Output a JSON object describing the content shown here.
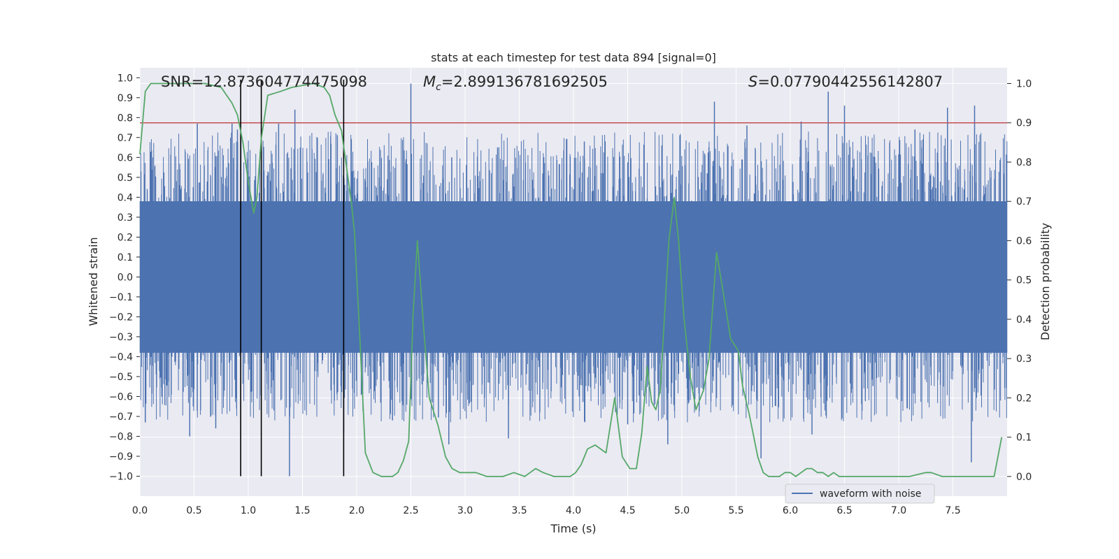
{
  "chart_data": {
    "type": "line",
    "title": "stats at each timestep for test data 894 [signal=0]",
    "xlabel": "Time (s)",
    "ylabel": "Whitened strain",
    "y2label": "Detection probability",
    "xlim": [
      0.0,
      8.0
    ],
    "ylim": [
      -1.1,
      1.05
    ],
    "y2lim": [
      -0.05,
      1.04
    ],
    "xticks": [
      0.0,
      0.5,
      1.0,
      1.5,
      2.0,
      2.5,
      3.0,
      3.5,
      4.0,
      4.5,
      5.0,
      5.5,
      6.0,
      6.5,
      7.0,
      7.5
    ],
    "xtick_labels": [
      "0.0",
      "0.5",
      "1.0",
      "1.5",
      "2.0",
      "2.5",
      "3.0",
      "3.5",
      "4.0",
      "4.5",
      "5.0",
      "5.5",
      "6.0",
      "6.5",
      "7.0",
      "7.5"
    ],
    "yticks": [
      1.0,
      0.9,
      0.8,
      0.7,
      0.6,
      0.5,
      0.4,
      0.3,
      0.2,
      0.1,
      0.0,
      -0.1,
      -0.2,
      -0.3,
      -0.4,
      -0.5,
      -0.6,
      -0.7,
      -0.8,
      -0.9,
      -1.0
    ],
    "ytick_labels": [
      "1.0",
      "0.9",
      "0.8",
      "0.7",
      "0.6",
      "0.5",
      "0.4",
      "0.3",
      "0.2",
      "0.1",
      "0.0",
      "−0.1",
      "−0.2",
      "−0.3",
      "−0.4",
      "−0.5",
      "−0.6",
      "−0.7",
      "−0.8",
      "−0.9",
      "−1.0"
    ],
    "y2ticks": [
      1.0,
      0.9,
      0.8,
      0.7,
      0.6,
      0.5,
      0.4,
      0.3,
      0.2,
      0.1,
      0.0
    ],
    "y2tick_labels": [
      "1.0",
      "0.9",
      "0.8",
      "0.7",
      "0.6",
      "0.5",
      "0.4",
      "0.3",
      "0.2",
      "0.1",
      "0.0"
    ],
    "grid": true,
    "legend_position": "lower-right",
    "legend": [
      "waveform with noise"
    ],
    "annotations": {
      "snr": "SNR=12.873604774475098",
      "mc_symbol": "M",
      "mc_subscript": "c",
      "mc_value": "=2.899136781692505",
      "s_symbol": "S",
      "s_value": "=0.07790442556142807"
    },
    "threshold": {
      "axis": "right",
      "value": 0.9
    },
    "vlines": [
      0.93,
      1.12,
      1.88
    ],
    "waveform": {
      "name": "waveform with noise",
      "axis": "left",
      "bulk_amplitude": 0.38,
      "seed": 894,
      "positive_spikes": [
        [
          0.53,
          0.77
        ],
        [
          0.85,
          0.77
        ],
        [
          0.9,
          0.74
        ],
        [
          1.28,
          0.77
        ],
        [
          1.43,
          0.84
        ],
        [
          2.5,
          0.97
        ],
        [
          5.3,
          0.88
        ],
        [
          5.6,
          0.76
        ],
        [
          6.1,
          0.78
        ],
        [
          6.35,
          0.93
        ],
        [
          6.5,
          0.86
        ],
        [
          7.15,
          0.74
        ],
        [
          7.45,
          0.85
        ],
        [
          7.7,
          0.86
        ],
        [
          4.1,
          0.68
        ],
        [
          3.3,
          0.65
        ]
      ],
      "negative_spikes": [
        [
          0.46,
          -0.8
        ],
        [
          0.7,
          -0.76
        ],
        [
          1.38,
          -1.0
        ],
        [
          1.88,
          -0.78
        ],
        [
          2.85,
          -0.84
        ],
        [
          3.4,
          -0.81
        ],
        [
          4.87,
          -0.84
        ],
        [
          5.73,
          -0.91
        ],
        [
          6.2,
          -0.79
        ],
        [
          7.67,
          -0.93
        ],
        [
          0.05,
          -0.73
        ],
        [
          2.33,
          -0.72
        ],
        [
          4.5,
          -0.74
        ]
      ]
    },
    "detection_probability": {
      "name": "",
      "axis": "right",
      "x": [
        0.0,
        0.05,
        0.1,
        0.2,
        0.3,
        0.5,
        0.6,
        0.75,
        0.8,
        0.85,
        0.9,
        0.95,
        1.0,
        1.05,
        1.08,
        1.12,
        1.18,
        1.3,
        1.4,
        1.6,
        1.7,
        1.75,
        1.8,
        1.86,
        1.9,
        1.95,
        1.98,
        2.03,
        2.08,
        2.15,
        2.23,
        2.33,
        2.38,
        2.43,
        2.48,
        2.52,
        2.56,
        2.62,
        2.67,
        2.75,
        2.82,
        2.88,
        2.95,
        3.03,
        3.1,
        3.2,
        3.35,
        3.45,
        3.55,
        3.6,
        3.65,
        3.72,
        3.82,
        3.92,
        3.97,
        4.02,
        4.07,
        4.13,
        4.2,
        4.3,
        4.38,
        4.45,
        4.52,
        4.58,
        4.63,
        4.68,
        4.72,
        4.76,
        4.8,
        4.88,
        4.93,
        4.97,
        5.02,
        5.08,
        5.13,
        5.2,
        5.25,
        5.32,
        5.38,
        5.45,
        5.52,
        5.56,
        5.62,
        5.7,
        5.75,
        5.8,
        5.85,
        5.9,
        5.95,
        6.0,
        6.05,
        6.1,
        6.15,
        6.2,
        6.25,
        6.3,
        6.35,
        6.4,
        6.45,
        6.55,
        6.7,
        6.8,
        7.0,
        7.1,
        7.25,
        7.3,
        7.4,
        7.5,
        7.6,
        7.7,
        7.8,
        7.85,
        7.88,
        7.95
      ],
      "y": [
        0.82,
        0.98,
        1.0,
        1.0,
        1.0,
        1.0,
        1.0,
        0.99,
        0.97,
        0.95,
        0.92,
        0.85,
        0.75,
        0.67,
        0.71,
        0.86,
        0.97,
        0.98,
        0.99,
        1.0,
        0.99,
        0.97,
        0.92,
        0.88,
        0.8,
        0.7,
        0.62,
        0.35,
        0.06,
        0.01,
        0.0,
        0.0,
        0.01,
        0.04,
        0.09,
        0.41,
        0.6,
        0.37,
        0.2,
        0.13,
        0.05,
        0.02,
        0.01,
        0.01,
        0.01,
        0.0,
        0.0,
        0.01,
        0.0,
        0.01,
        0.02,
        0.01,
        0.0,
        0.0,
        0.0,
        0.01,
        0.03,
        0.07,
        0.08,
        0.06,
        0.2,
        0.05,
        0.02,
        0.02,
        0.11,
        0.28,
        0.19,
        0.17,
        0.22,
        0.6,
        0.71,
        0.6,
        0.4,
        0.25,
        0.17,
        0.22,
        0.3,
        0.57,
        0.47,
        0.35,
        0.32,
        0.23,
        0.16,
        0.05,
        0.01,
        0.0,
        0.0,
        0.0,
        0.01,
        0.01,
        0.0,
        0.01,
        0.02,
        0.02,
        0.01,
        0.01,
        0.0,
        0.01,
        0.0,
        0.0,
        0.0,
        0.0,
        0.0,
        0.0,
        0.01,
        0.01,
        0.0,
        0.0,
        0.0,
        0.0,
        0.0,
        0.0,
        0.0,
        0.1
      ]
    },
    "colors": {
      "figure_bg": "#ffffff",
      "axes_bg": "#eaeaf2",
      "grid": "#ffffff",
      "waveform": "#4c72b0",
      "probability": "#55a868",
      "threshold": "#c44e52",
      "vline": "#000000",
      "text": "#262626"
    }
  }
}
